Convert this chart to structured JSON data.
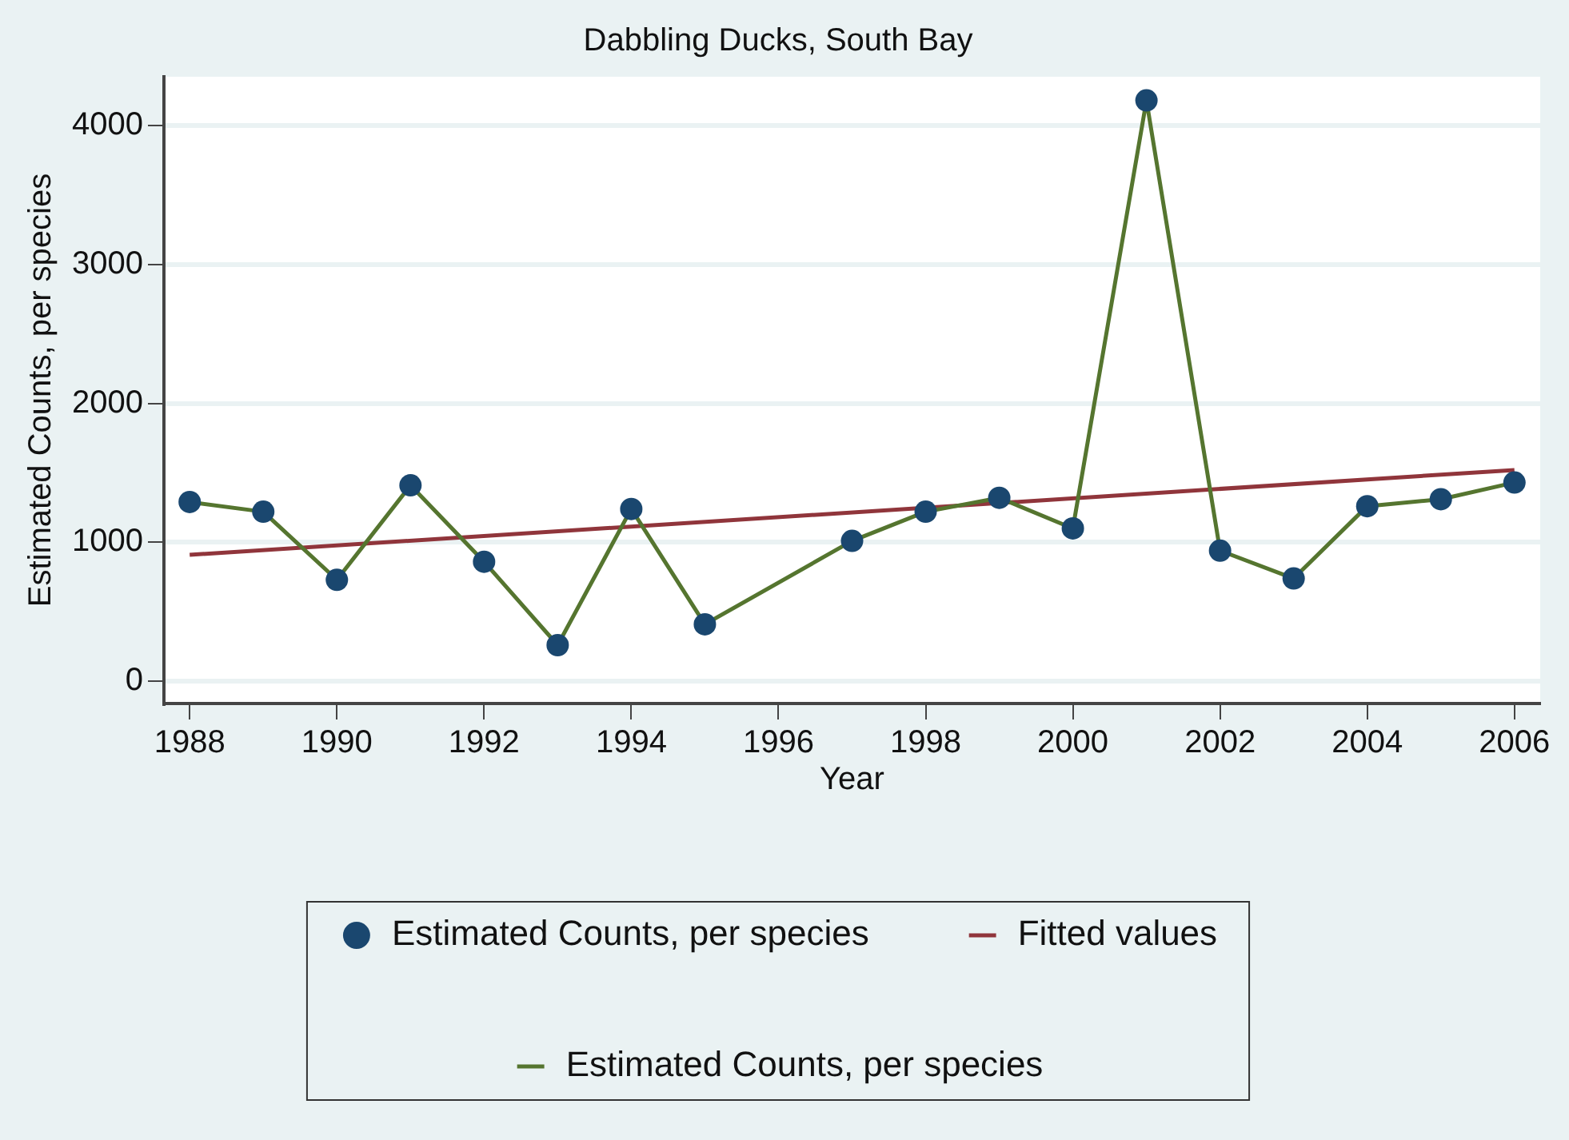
{
  "chart_data": {
    "type": "line",
    "title": "Dabbling Ducks, South Bay",
    "xlabel": "Year",
    "ylabel": "Estimated Counts, per species",
    "x": [
      1988,
      1989,
      1990,
      1991,
      1992,
      1993,
      1994,
      1995,
      1997,
      1998,
      1999,
      2000,
      2001,
      2002,
      2003,
      2004,
      2005,
      2006
    ],
    "series": [
      {
        "type": "scatter",
        "name": "Estimated Counts, per species",
        "color": "#1a476f",
        "marker": "circle",
        "values": [
          1290,
          1220,
          730,
          1410,
          860,
          260,
          1240,
          410,
          1010,
          1220,
          1320,
          1100,
          4180,
          940,
          740,
          1260,
          1310,
          1430
        ]
      },
      {
        "name": "Estimated Counts, per species",
        "color": "#55752f",
        "marker": "none",
        "values": [
          1290,
          1220,
          730,
          1410,
          860,
          260,
          1240,
          410,
          1010,
          1220,
          1320,
          1100,
          4180,
          940,
          740,
          1260,
          1310,
          1430
        ]
      },
      {
        "name": "Fitted values",
        "color": "#90353b",
        "marker": "none",
        "x": [
          1988,
          2006
        ],
        "values": [
          910,
          1520
        ]
      }
    ],
    "xlim": [
      1987.65,
      2006.35
    ],
    "xticks": [
      1988,
      1990,
      1992,
      1994,
      1996,
      1998,
      2000,
      2002,
      2004,
      2006
    ],
    "ylim": [
      -160,
      4350
    ],
    "yticks": [
      0,
      1000,
      2000,
      3000,
      4000
    ],
    "grid": "y",
    "legend": "bottom",
    "line_style": "solid"
  }
}
